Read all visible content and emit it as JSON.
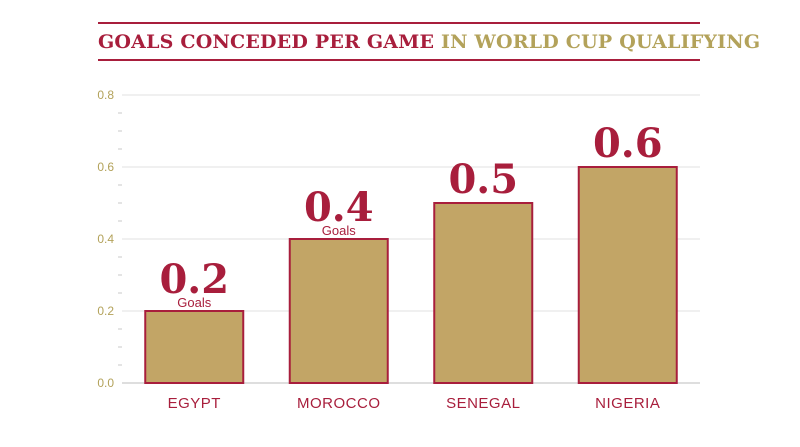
{
  "title": {
    "main": "GOALS CONCEDED PER GAME",
    "sub": "IN WORLD CUP QUALIFYING"
  },
  "colors": {
    "bar": "#c2a566",
    "bar_stroke": "#a81e3c",
    "accent": "#a81e3c",
    "gold": "#b3a25a",
    "grid": "#e2e2e2"
  },
  "chart_data": {
    "type": "bar",
    "categories": [
      "EGYPT",
      "MOROCCO",
      "SENEGAL",
      "NIGERIA"
    ],
    "values": [
      0.2,
      0.4,
      0.5,
      0.6
    ],
    "data_labels": [
      "0.2",
      "0.4",
      "0.5",
      "0.6"
    ],
    "unit_labels": [
      "Goals",
      "Goals",
      "",
      ""
    ],
    "title": "GOALS CONCEDED PER GAME IN WORLD CUP QUALIFYING",
    "xlabel": "",
    "ylabel": "",
    "ylim": [
      0,
      0.8
    ],
    "yticks": [
      "0.0",
      "0.2",
      "0.4",
      "0.6",
      "0.8"
    ],
    "grid": true,
    "legend": "none"
  }
}
